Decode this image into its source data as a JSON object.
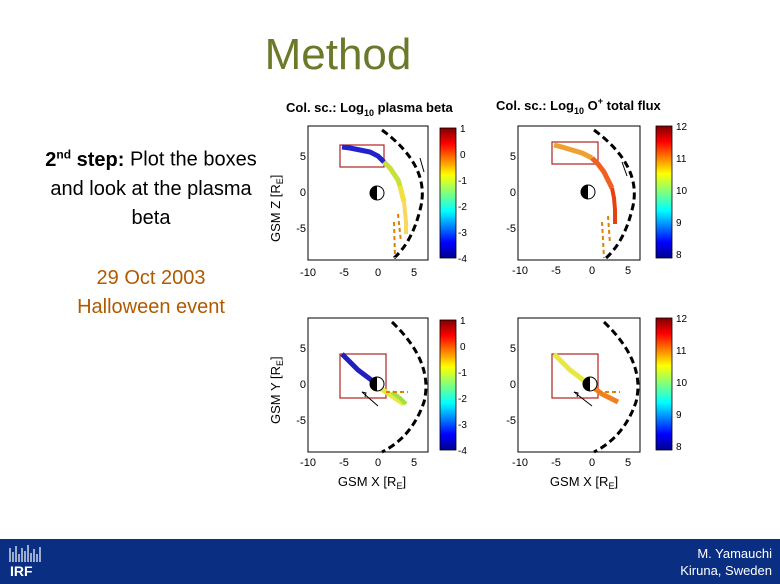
{
  "slide": {
    "title": "Method",
    "step_prefix": "2",
    "step_sup": "nd",
    "step_bold": " step:",
    "step_text": " Plot the boxes and look at the plasma beta",
    "event_line1": "29 Oct 2003",
    "event_line2": "Halloween event"
  },
  "figure": {
    "panel_title_left": "Col. sc.: Log",
    "panel_title_left_sub": "10",
    "panel_title_left_rest": " plasma beta",
    "panel_title_right": "Col. sc.: Log",
    "panel_title_right_sub": "10",
    "panel_title_right_o": " O",
    "panel_title_right_sup": "+",
    "panel_title_right_rest": " total flux",
    "ylabel_top": "GSM Z [R",
    "ylabel_bottom": "GSM Y [R",
    "ylabel_sub": "E",
    "xlabel": "GSM X [R",
    "xlabel_sub": "E",
    "xticks": [
      "-10",
      "-5",
      "0",
      "5"
    ],
    "yticks": [
      "5",
      "0",
      "-5"
    ],
    "beta_ticks": [
      "1",
      "0",
      "-1",
      "-2",
      "-3",
      "-4"
    ],
    "flux_ticks": [
      "12",
      "11",
      "10",
      "9",
      "8"
    ]
  },
  "footer": {
    "logo_text": "IRF",
    "author": "M. Yamauchi",
    "location": "Kiruna, Sweden"
  },
  "colors": {
    "title": "#6b7a2a",
    "event": "#b05a00",
    "footer_bg": "#0a2f82"
  }
}
